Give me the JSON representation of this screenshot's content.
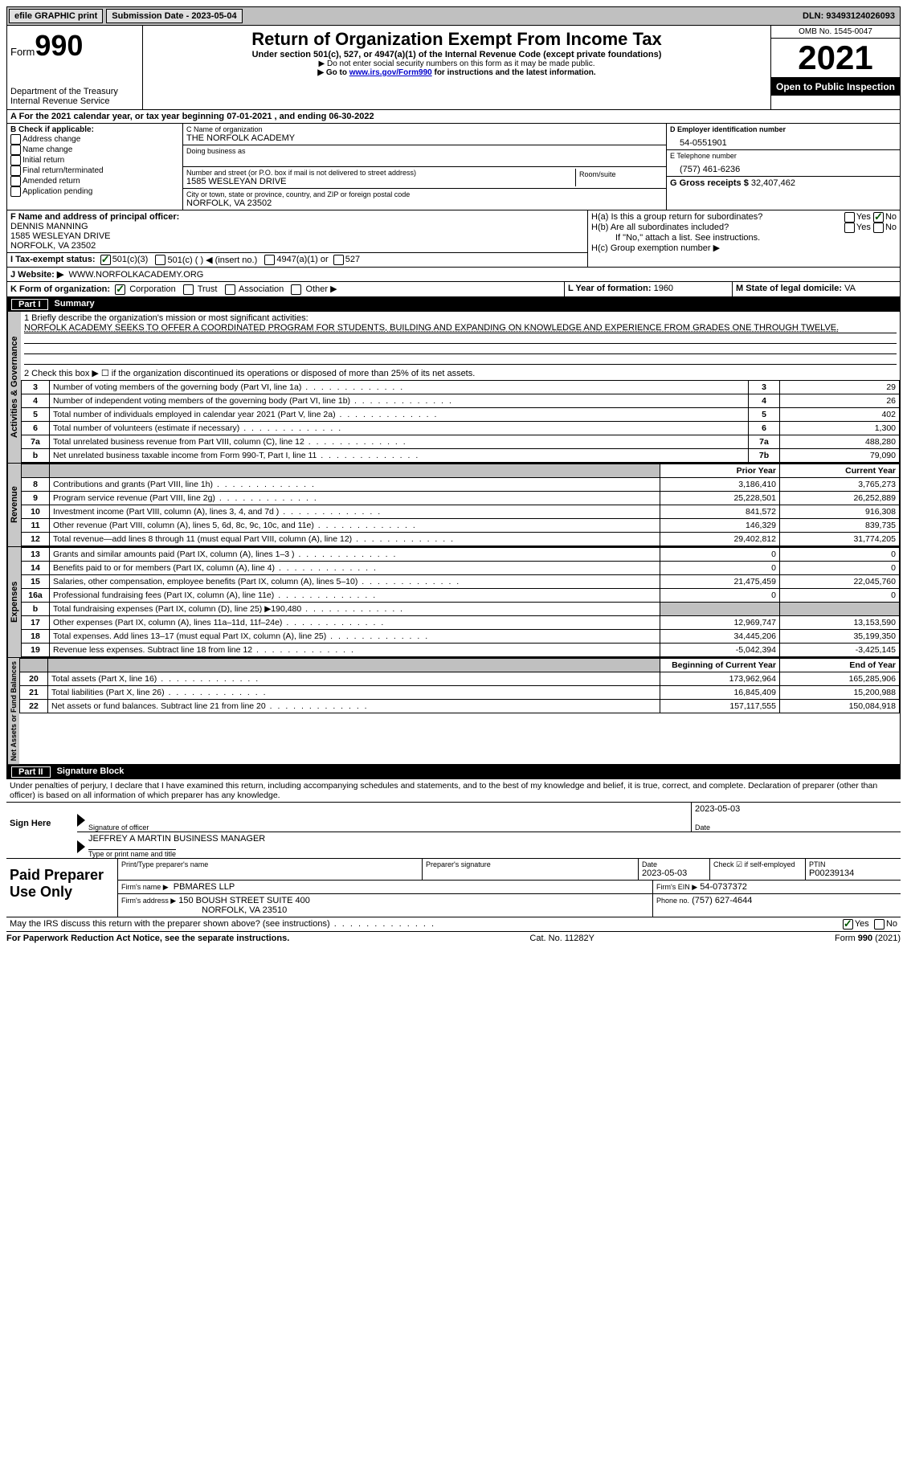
{
  "topbar": {
    "efile_label": "efile GRAPHIC print",
    "submission_label": "Submission Date - 2023-05-04",
    "dln_label": "DLN: 93493124026093"
  },
  "header": {
    "form_word": "Form",
    "form_num": "990",
    "dept": "Department of the Treasury",
    "irs": "Internal Revenue Service",
    "title": "Return of Organization Exempt From Income Tax",
    "subtitle": "Under section 501(c), 527, or 4947(a)(1) of the Internal Revenue Code (except private foundations)",
    "note1": "▶ Do not enter social security numbers on this form as it may be made public.",
    "note2_pre": "▶ Go to ",
    "note2_link": "www.irs.gov/Form990",
    "note2_post": " for instructions and the latest information.",
    "omb": "OMB No. 1545-0047",
    "year": "2021",
    "open": "Open to Public Inspection"
  },
  "A": {
    "line": "A For the 2021 calendar year, or tax year beginning 07-01-2021    , and ending 06-30-2022"
  },
  "B": {
    "label": "B Check if applicable:",
    "opts": [
      "Address change",
      "Name change",
      "Initial return",
      "Final return/terminated",
      "Amended return",
      "Application pending"
    ]
  },
  "C": {
    "name_label": "C Name of organization",
    "name": "THE NORFOLK ACADEMY",
    "dba_label": "Doing business as",
    "addr_label": "Number and street (or P.O. box if mail is not delivered to street address)",
    "room_label": "Room/suite",
    "addr": "1585 WESLEYAN DRIVE",
    "city_label": "City or town, state or province, country, and ZIP or foreign postal code",
    "city": "NORFOLK, VA   23502"
  },
  "D": {
    "label": "D Employer identification number",
    "val": "54-0551901"
  },
  "E": {
    "label": "E Telephone number",
    "val": "(757) 461-6236"
  },
  "G": {
    "label": "G Gross receipts $",
    "val": "32,407,462"
  },
  "F": {
    "label": "F Name and address of principal officer:",
    "name": "DENNIS MANNING",
    "addr1": "1585 WESLEYAN DRIVE",
    "addr2": "NORFOLK, VA   23502"
  },
  "H": {
    "a": "H(a)  Is this a group return for subordinates?",
    "b": "H(b)  Are all subordinates included?",
    "b_note": "If \"No,\" attach a list. See instructions.",
    "c": "H(c)  Group exemption number ▶",
    "yes": "Yes",
    "no": "No"
  },
  "I": {
    "label": "I   Tax-exempt status:",
    "o1": "501(c)(3)",
    "o2": "501(c) (   ) ◀ (insert no.)",
    "o3": "4947(a)(1) or",
    "o4": "527"
  },
  "J": {
    "label": "J   Website: ▶",
    "val": "WWW.NORFOLKACADEMY.ORG"
  },
  "K": {
    "label": "K Form of organization:",
    "o1": "Corporation",
    "o2": "Trust",
    "o3": "Association",
    "o4": "Other ▶"
  },
  "L": {
    "label": "L Year of formation:",
    "val": "1960"
  },
  "M": {
    "label": "M State of legal domicile:",
    "val": "VA"
  },
  "part1": {
    "title": "Part I",
    "name": "Summary",
    "q1_label": "1  Briefly describe the organization's mission or most significant activities:",
    "q1_text": "NORFOLK ACADEMY SEEKS TO OFFER A COORDINATED PROGRAM FOR STUDENTS, BUILDING AND EXPANDING ON KNOWLEDGE AND EXPERIENCE FROM GRADES ONE THROUGH TWELVE.",
    "q2": "2   Check this box ▶ ☐  if the organization discontinued its operations or disposed of more than 25% of its net assets.",
    "vert": {
      "ag": "Activities & Governance",
      "rev": "Revenue",
      "exp": "Expenses",
      "na": "Net Assets or Fund Balances"
    },
    "col_prior": "Prior Year",
    "col_current": "Current Year",
    "col_boy": "Beginning of Current Year",
    "col_eoy": "End of Year",
    "rows_ag": [
      {
        "n": "3",
        "d": "Number of voting members of the governing body (Part VI, line 1a)",
        "box": "3",
        "v": "29"
      },
      {
        "n": "4",
        "d": "Number of independent voting members of the governing body (Part VI, line 1b)",
        "box": "4",
        "v": "26"
      },
      {
        "n": "5",
        "d": "Total number of individuals employed in calendar year 2021 (Part V, line 2a)",
        "box": "5",
        "v": "402"
      },
      {
        "n": "6",
        "d": "Total number of volunteers (estimate if necessary)",
        "box": "6",
        "v": "1,300"
      },
      {
        "n": "7a",
        "d": "Total unrelated business revenue from Part VIII, column (C), line 12",
        "box": "7a",
        "v": "488,280"
      },
      {
        "n": "b",
        "d": "Net unrelated business taxable income from Form 990-T, Part I, line 11",
        "box": "7b",
        "v": "79,090"
      }
    ],
    "rows_rev": [
      {
        "n": "8",
        "d": "Contributions and grants (Part VIII, line 1h)",
        "p": "3,186,410",
        "c": "3,765,273"
      },
      {
        "n": "9",
        "d": "Program service revenue (Part VIII, line 2g)",
        "p": "25,228,501",
        "c": "26,252,889"
      },
      {
        "n": "10",
        "d": "Investment income (Part VIII, column (A), lines 3, 4, and 7d )",
        "p": "841,572",
        "c": "916,308"
      },
      {
        "n": "11",
        "d": "Other revenue (Part VIII, column (A), lines 5, 6d, 8c, 9c, 10c, and 11e)",
        "p": "146,329",
        "c": "839,735"
      },
      {
        "n": "12",
        "d": "Total revenue—add lines 8 through 11 (must equal Part VIII, column (A), line 12)",
        "p": "29,402,812",
        "c": "31,774,205"
      }
    ],
    "rows_exp": [
      {
        "n": "13",
        "d": "Grants and similar amounts paid (Part IX, column (A), lines 1–3 )",
        "p": "0",
        "c": "0"
      },
      {
        "n": "14",
        "d": "Benefits paid to or for members (Part IX, column (A), line 4)",
        "p": "0",
        "c": "0"
      },
      {
        "n": "15",
        "d": "Salaries, other compensation, employee benefits (Part IX, column (A), lines 5–10)",
        "p": "21,475,459",
        "c": "22,045,760"
      },
      {
        "n": "16a",
        "d": "Professional fundraising fees (Part IX, column (A), line 11e)",
        "p": "0",
        "c": "0"
      },
      {
        "n": "b",
        "d": "Total fundraising expenses (Part IX, column (D), line 25) ▶190,480",
        "p": "",
        "c": "",
        "shade": true
      },
      {
        "n": "17",
        "d": "Other expenses (Part IX, column (A), lines 11a–11d, 11f–24e)",
        "p": "12,969,747",
        "c": "13,153,590"
      },
      {
        "n": "18",
        "d": "Total expenses. Add lines 13–17 (must equal Part IX, column (A), line 25)",
        "p": "34,445,206",
        "c": "35,199,350"
      },
      {
        "n": "19",
        "d": "Revenue less expenses. Subtract line 18 from line 12",
        "p": "-5,042,394",
        "c": "-3,425,145"
      }
    ],
    "rows_na": [
      {
        "n": "20",
        "d": "Total assets (Part X, line 16)",
        "p": "173,962,964",
        "c": "165,285,906"
      },
      {
        "n": "21",
        "d": "Total liabilities (Part X, line 26)",
        "p": "16,845,409",
        "c": "15,200,988"
      },
      {
        "n": "22",
        "d": "Net assets or fund balances. Subtract line 21 from line 20",
        "p": "157,117,555",
        "c": "150,084,918"
      }
    ]
  },
  "part2": {
    "title": "Part II",
    "name": "Signature Block",
    "decl": "Under penalties of perjury, I declare that I have examined this return, including accompanying schedules and statements, and to the best of my knowledge and belief, it is true, correct, and complete. Declaration of preparer (other than officer) is based on all information of which preparer has any knowledge.",
    "sign_here": "Sign Here",
    "sig_officer": "Signature of officer",
    "sig_date": "2023-05-03",
    "date_label": "Date",
    "officer_name": "JEFFREY A MARTIN  BUSINESS MANAGER",
    "type_name": "Type or print name and title",
    "paid": "Paid Preparer Use Only",
    "pt_name_label": "Print/Type preparer's name",
    "pt_sig_label": "Preparer's signature",
    "pt_date_label": "Date",
    "pt_date": "2023-05-03",
    "pt_check_label": "Check ☑ if self-employed",
    "ptin_label": "PTIN",
    "ptin": "P00239134",
    "firm_name_label": "Firm's name      ▶",
    "firm_name": "PBMARES LLP",
    "firm_ein_label": "Firm's EIN ▶",
    "firm_ein": "54-0737372",
    "firm_addr_label": "Firm's address ▶",
    "firm_addr1": "150 BOUSH STREET SUITE 400",
    "firm_addr2": "NORFOLK, VA   23510",
    "phone_label": "Phone no.",
    "phone": "(757) 627-4644",
    "discuss": "May the IRS discuss this return with the preparer shown above? (see instructions)",
    "yes": "Yes",
    "no": "No"
  },
  "footer": {
    "left": "For Paperwork Reduction Act Notice, see the separate instructions.",
    "mid": "Cat. No. 11282Y",
    "right": "Form 990 (2021)"
  }
}
